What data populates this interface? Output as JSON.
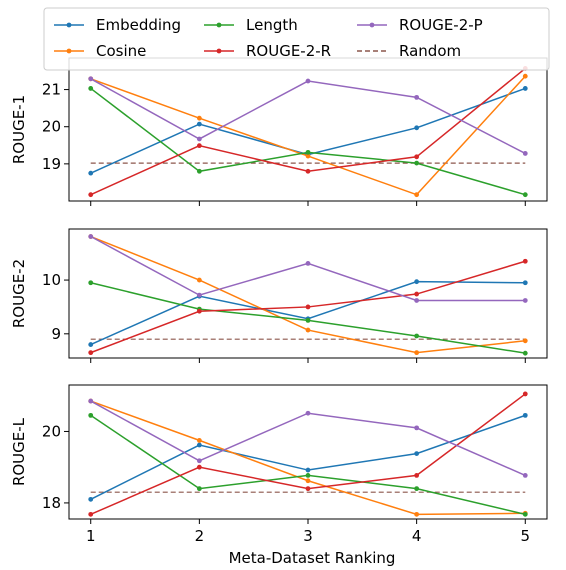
{
  "chart_data": {
    "type": "line",
    "xlabel": "Meta-Dataset Ranking",
    "x": [
      1,
      2,
      3,
      4,
      5
    ],
    "xticks": [
      "1",
      "2",
      "3",
      "4",
      "5"
    ],
    "legend": {
      "placement": "top",
      "entries": [
        {
          "name": "Embedding",
          "color": "#1f77b4",
          "style": "solid"
        },
        {
          "name": "Length",
          "color": "#2ca02c",
          "style": "solid"
        },
        {
          "name": "ROUGE-2-P",
          "color": "#9467bd",
          "style": "solid"
        },
        {
          "name": "Cosine",
          "color": "#ff7f0e",
          "style": "solid"
        },
        {
          "name": "ROUGE-2-R",
          "color": "#d62728",
          "style": "solid"
        },
        {
          "name": "Random",
          "color": "#8c564b",
          "style": "dashed"
        }
      ]
    },
    "panels": [
      {
        "ylabel": "ROUGE-1",
        "ylim": [
          18.0,
          21.85
        ],
        "yticks": [
          19,
          20,
          21
        ],
        "ytick_labels": [
          "19",
          "20",
          "21"
        ],
        "random": 19.02,
        "series": [
          {
            "name": "Embedding",
            "color": "#1f77b4",
            "values": [
              18.75,
              20.07,
              19.25,
              19.97,
              21.03
            ]
          },
          {
            "name": "Cosine",
            "color": "#ff7f0e",
            "values": [
              21.29,
              20.23,
              19.21,
              18.17,
              21.36
            ]
          },
          {
            "name": "Length",
            "color": "#2ca02c",
            "values": [
              21.03,
              18.8,
              19.31,
              19.02,
              18.17
            ]
          },
          {
            "name": "ROUGE-2-R",
            "color": "#d62728",
            "values": [
              18.17,
              19.49,
              18.8,
              19.19,
              21.57
            ]
          },
          {
            "name": "ROUGE-2-P",
            "color": "#9467bd",
            "values": [
              21.29,
              19.67,
              21.23,
              20.79,
              19.28
            ]
          }
        ]
      },
      {
        "ylabel": "ROUGE-2",
        "ylim": [
          8.55,
          10.95
        ],
        "yticks": [
          9,
          10
        ],
        "ytick_labels": [
          "9",
          "10"
        ],
        "random": 8.9,
        "series": [
          {
            "name": "Embedding",
            "color": "#1f77b4",
            "values": [
              8.8,
              9.7,
              9.28,
              9.97,
              9.95
            ]
          },
          {
            "name": "Cosine",
            "color": "#ff7f0e",
            "values": [
              10.81,
              10.0,
              9.07,
              8.65,
              8.87
            ]
          },
          {
            "name": "Length",
            "color": "#2ca02c",
            "values": [
              9.95,
              9.46,
              9.25,
              8.96,
              8.64
            ]
          },
          {
            "name": "ROUGE-2-R",
            "color": "#d62728",
            "values": [
              8.65,
              9.42,
              9.5,
              9.74,
              10.35
            ]
          },
          {
            "name": "ROUGE-2-P",
            "color": "#9467bd",
            "values": [
              10.81,
              9.72,
              10.31,
              9.62,
              9.62
            ]
          }
        ]
      },
      {
        "ylabel": "ROUGE-L",
        "ylim": [
          17.55,
          21.3
        ],
        "yticks": [
          18,
          20
        ],
        "ytick_labels": [
          "18",
          "20"
        ],
        "random": 18.3,
        "series": [
          {
            "name": "Embedding",
            "color": "#1f77b4",
            "values": [
              18.1,
              19.62,
              18.92,
              19.38,
              20.45
            ]
          },
          {
            "name": "Cosine",
            "color": "#ff7f0e",
            "values": [
              20.85,
              19.75,
              18.62,
              17.68,
              17.71
            ]
          },
          {
            "name": "Length",
            "color": "#2ca02c",
            "values": [
              20.45,
              18.4,
              18.77,
              18.4,
              17.68
            ]
          },
          {
            "name": "ROUGE-2-R",
            "color": "#d62728",
            "values": [
              17.68,
              19.0,
              18.4,
              18.77,
              21.05
            ]
          },
          {
            "name": "ROUGE-2-P",
            "color": "#9467bd",
            "values": [
              20.85,
              19.18,
              20.51,
              20.1,
              18.77
            ]
          }
        ]
      }
    ]
  }
}
